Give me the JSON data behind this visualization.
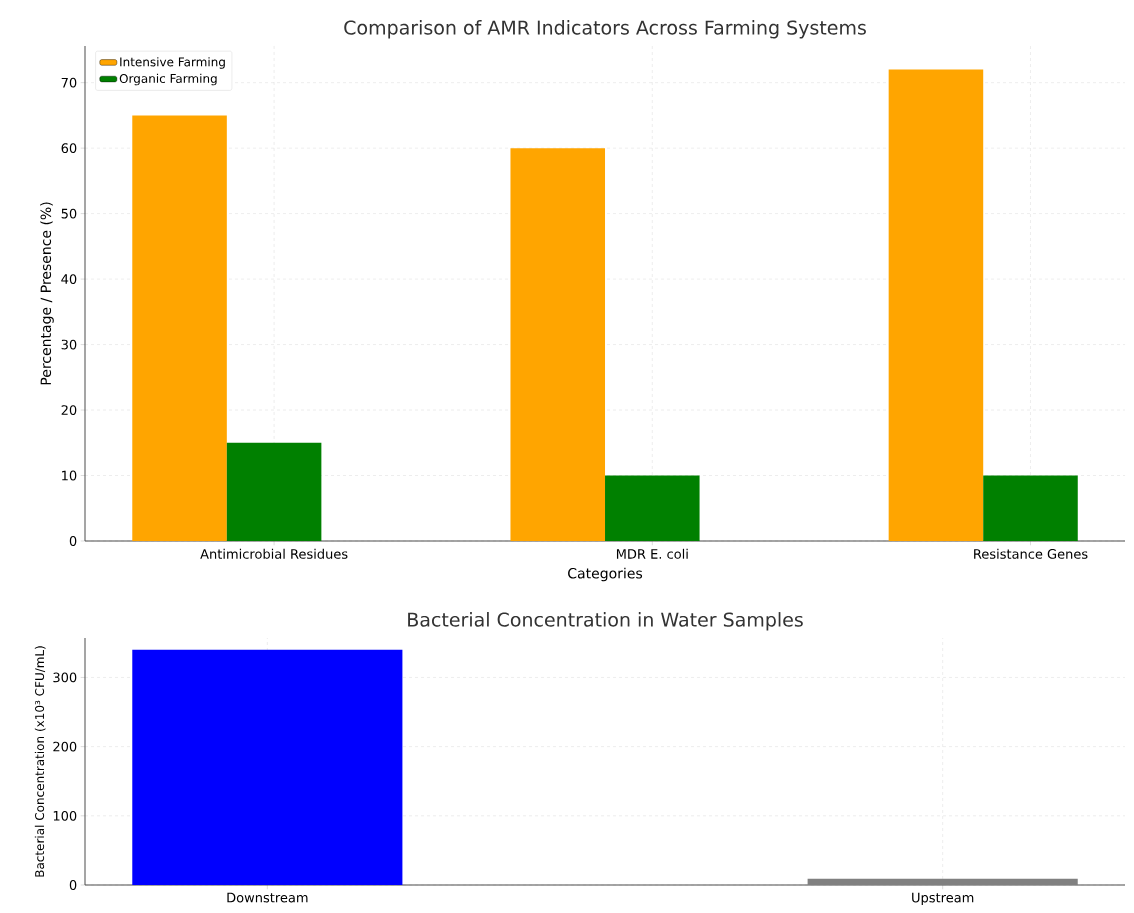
{
  "chart_data": [
    {
      "type": "bar",
      "title": "Comparison of AMR Indicators Across Farming Systems",
      "xlabel": "Categories",
      "ylabel": "Percentage / Presence (%)",
      "categories": [
        "Antimicrobial Residues",
        "MDR E. coli",
        "Resistance Genes"
      ],
      "series": [
        {
          "name": "Intensive Farming",
          "color": "#ffa500",
          "values": [
            65,
            60,
            72
          ]
        },
        {
          "name": "Organic Farming",
          "color": "#008000",
          "values": [
            15,
            10,
            10
          ]
        }
      ],
      "ylim": [
        0,
        75.6
      ],
      "yticks": [
        0,
        10,
        20,
        30,
        40,
        50,
        60,
        70
      ],
      "grid": true,
      "legend": "top left"
    },
    {
      "type": "bar",
      "title": "Bacterial Concentration in Water Samples",
      "ylabel": "Bacterial Concentration (x10³ CFU/mL)",
      "categories": [
        "Downstream",
        "Upstream"
      ],
      "values": [
        340,
        9
      ],
      "colors": [
        "#0000ff",
        "#808080"
      ],
      "ylim": [
        0,
        357
      ],
      "yticks": [
        0,
        100,
        200,
        300
      ],
      "grid": true
    }
  ]
}
